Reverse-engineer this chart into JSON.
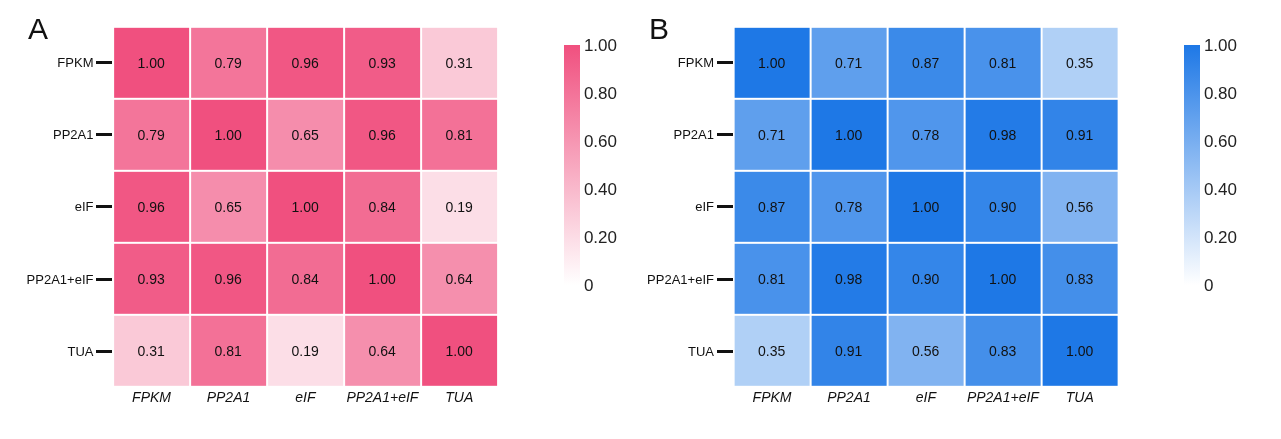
{
  "chart_data": [
    {
      "type": "heatmap",
      "title": "A",
      "categories": [
        "FPKM",
        "PP2A1",
        "eIF",
        "PP2A1+eIF",
        "TUA"
      ],
      "y_categories": [
        "FPKM",
        "PP2A1",
        "eIF",
        "PP2A1+eIF",
        "TUA"
      ],
      "cells": [
        [
          1.0,
          0.79,
          0.96,
          0.93,
          0.31
        ],
        [
          0.79,
          1.0,
          0.65,
          0.96,
          0.81
        ],
        [
          0.96,
          0.65,
          1.0,
          0.84,
          0.19
        ],
        [
          0.93,
          0.96,
          0.84,
          1.0,
          0.64
        ],
        [
          0.31,
          0.81,
          0.19,
          0.64,
          1.0
        ]
      ],
      "cell_labels": [
        [
          "1.00",
          "0.79",
          "0.96",
          "0.93",
          "0.31"
        ],
        [
          "0.79",
          "1.00",
          "0.65",
          "0.96",
          "0.81"
        ],
        [
          "0.96",
          "0.65",
          "1.00",
          "0.84",
          "0.19"
        ],
        [
          "0.93",
          "0.96",
          "0.84",
          "1.00",
          "0.64"
        ],
        [
          "0.31",
          "0.81",
          "0.19",
          "0.64",
          "1.00"
        ]
      ],
      "clim": [
        0,
        1
      ],
      "cticks": [
        0,
        {
          "value": 0.2,
          "label": "0.20"
        },
        {
          "value": 0.4,
          "label": "0.40"
        },
        {
          "value": 0.6,
          "label": "0.60"
        },
        {
          "value": 0.8,
          "label": "0.80"
        },
        {
          "value": 1,
          "label": "1.00"
        }
      ],
      "color": "#f0507f"
    },
    {
      "type": "heatmap",
      "title": "B",
      "categories": [
        "FPKM",
        "PP2A1",
        "eIF",
        "PP2A1+eIF",
        "TUA"
      ],
      "y_categories": [
        "FPKM",
        "PP2A1",
        "eIF",
        "PP2A1+eIF",
        "TUA"
      ],
      "cells": [
        [
          1.0,
          0.71,
          0.87,
          0.81,
          0.35
        ],
        [
          0.71,
          1.0,
          0.78,
          0.98,
          0.91
        ],
        [
          0.87,
          0.78,
          1.0,
          0.9,
          0.56
        ],
        [
          0.81,
          0.98,
          0.9,
          1.0,
          0.83
        ],
        [
          0.35,
          0.91,
          0.56,
          0.83,
          1.0
        ]
      ],
      "cell_labels": [
        [
          "1.00",
          "0.71",
          "0.87",
          "0.81",
          "0.35"
        ],
        [
          "0.71",
          "1.00",
          "0.78",
          "0.98",
          "0.91"
        ],
        [
          "0.87",
          "0.78",
          "1.00",
          "0.90",
          "0.56"
        ],
        [
          "0.81",
          "0.98",
          "0.90",
          "1.00",
          "0.83"
        ],
        [
          "0.35",
          "0.91",
          "0.56",
          "0.83",
          "1.00"
        ]
      ],
      "clim": [
        0,
        1
      ],
      "cticks": [
        0,
        {
          "value": 0.2,
          "label": "0.20"
        },
        {
          "value": 0.4,
          "label": "0.40"
        },
        {
          "value": 0.6,
          "label": "0.60"
        },
        {
          "value": 0.8,
          "label": "0.80"
        },
        {
          "value": 1,
          "label": "1.00"
        }
      ],
      "color": "#1e78e6"
    }
  ]
}
